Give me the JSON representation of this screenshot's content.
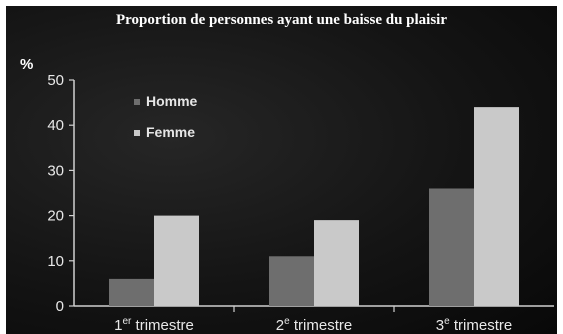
{
  "chart_data": {
    "type": "bar",
    "title": "Proportion de personnes ayant une baisse du plaisir",
    "ylabel": "%",
    "xlabel": "",
    "categories": [
      "1er trimestre",
      "2e trimestre",
      "3e trimestre"
    ],
    "category_labels": [
      {
        "main": "1",
        "sup": "er",
        "rest": " trimestre"
      },
      {
        "main": "2",
        "sup": "e",
        "rest": " trimestre"
      },
      {
        "main": "3",
        "sup": "e",
        "rest": " trimestre"
      }
    ],
    "series": [
      {
        "name": "Homme",
        "values": [
          6,
          11,
          26
        ],
        "color": "#6e6e6e"
      },
      {
        "name": "Femme",
        "values": [
          20,
          19,
          44
        ],
        "color": "#c9c9c9"
      }
    ],
    "ylim": [
      0,
      50
    ],
    "yticks": [
      0,
      10,
      20,
      30,
      40,
      50
    ],
    "grid": false,
    "legend": "top-left"
  }
}
